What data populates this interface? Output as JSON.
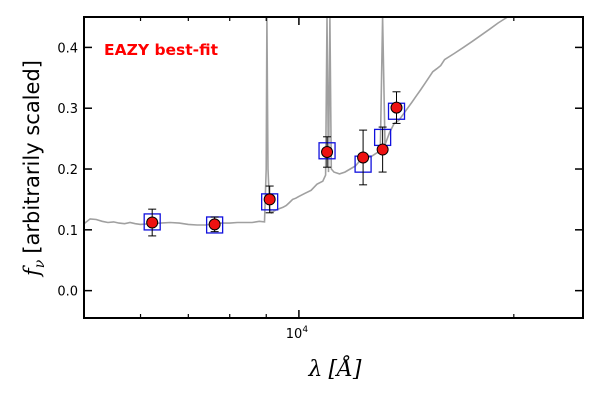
{
  "chart_data": {
    "type": "scatter",
    "annotation": "EAZY best-fit",
    "xlabel_symbol": "λ",
    "xlabel_unit": "[Å]",
    "ylabel_symbol": "f",
    "ylabel_sub": "ν",
    "ylabel_text": "[arbitrarily scaled]",
    "xscale": "log",
    "xlim": [
      5000,
      25000
    ],
    "ylim": [
      -0.045,
      0.45
    ],
    "yticks": [
      0.0,
      0.1,
      0.2,
      0.3,
      0.4
    ],
    "ytick_labels": [
      "0.0",
      "0.1",
      "0.2",
      "0.3",
      "0.4"
    ],
    "xtick_major": 10000,
    "xtick_major_label_base": "10",
    "xtick_major_label_exp": "4",
    "xtick_minor": [
      6000,
      7000,
      8000,
      9000,
      20000
    ],
    "colors": {
      "observed_fill": "#ee1111",
      "model_box": "#1111dd",
      "model_line": "#a0a0a0",
      "annotation": "#ff0000"
    },
    "series": [
      {
        "name": "observed photometry",
        "x": [
          6230,
          7620,
          9100,
          10950,
          12300,
          13100,
          13700
        ],
        "y": [
          0.112,
          0.109,
          0.15,
          0.228,
          0.219,
          0.232,
          0.301
        ],
        "yerr": [
          0.022,
          0.012,
          0.022,
          0.025,
          0.045,
          0.037,
          0.026
        ]
      },
      {
        "name": "model synthetic photometry",
        "x": [
          6230,
          7620,
          9100,
          10950,
          12300,
          13100,
          13700
        ],
        "y": [
          0.113,
          0.108,
          0.146,
          0.23,
          0.208,
          0.252,
          0.295
        ]
      },
      {
        "name": "best-fit SED",
        "x": [
          5000,
          5100,
          5200,
          5300,
          5400,
          5500,
          5600,
          5700,
          5800,
          5900,
          6000,
          6200,
          6400,
          6600,
          6800,
          7000,
          7200,
          7400,
          7600,
          7800,
          8000,
          8200,
          8400,
          8600,
          8800,
          8950,
          9000,
          9020,
          9050,
          9100,
          9150,
          9200,
          9300,
          9400,
          9500,
          9600,
          9700,
          9800,
          9900,
          10000,
          10200,
          10400,
          10600,
          10800,
          10900,
          10950,
          11000,
          11050,
          11100,
          11200,
          11400,
          11600,
          11800,
          12000,
          12200,
          12400,
          12600,
          12800,
          13000,
          13100,
          13200,
          13300,
          13400,
          13600,
          13800,
          14000,
          14200,
          14400,
          14600,
          14800,
          15000,
          15200,
          15400,
          15600,
          15800,
          16000,
          16500,
          17000,
          17500,
          18000,
          18500,
          19000,
          19300,
          19600,
          20000,
          21000,
          22000,
          23000,
          24000,
          25000
        ],
        "y": [
          0.11,
          0.118,
          0.117,
          0.114,
          0.112,
          0.113,
          0.111,
          0.11,
          0.112,
          0.11,
          0.109,
          0.11,
          0.111,
          0.112,
          0.111,
          0.109,
          0.108,
          0.108,
          0.11,
          0.111,
          0.111,
          0.112,
          0.112,
          0.112,
          0.114,
          0.113,
          0.2,
          0.45,
          0.2,
          0.135,
          0.128,
          0.13,
          0.133,
          0.135,
          0.137,
          0.14,
          0.145,
          0.15,
          0.152,
          0.155,
          0.16,
          0.165,
          0.175,
          0.18,
          0.19,
          0.45,
          0.195,
          0.45,
          0.2,
          0.195,
          0.192,
          0.195,
          0.2,
          0.205,
          0.215,
          0.22,
          0.22,
          0.225,
          0.23,
          0.45,
          0.24,
          0.25,
          0.26,
          0.275,
          0.28,
          0.29,
          0.3,
          0.31,
          0.32,
          0.33,
          0.34,
          0.35,
          0.36,
          0.365,
          0.37,
          0.38,
          0.39,
          0.4,
          0.41,
          0.42,
          0.43,
          0.44,
          0.445,
          0.45,
          0.45,
          0.45,
          0.45,
          0.45,
          0.45,
          0.45
        ]
      }
    ]
  }
}
